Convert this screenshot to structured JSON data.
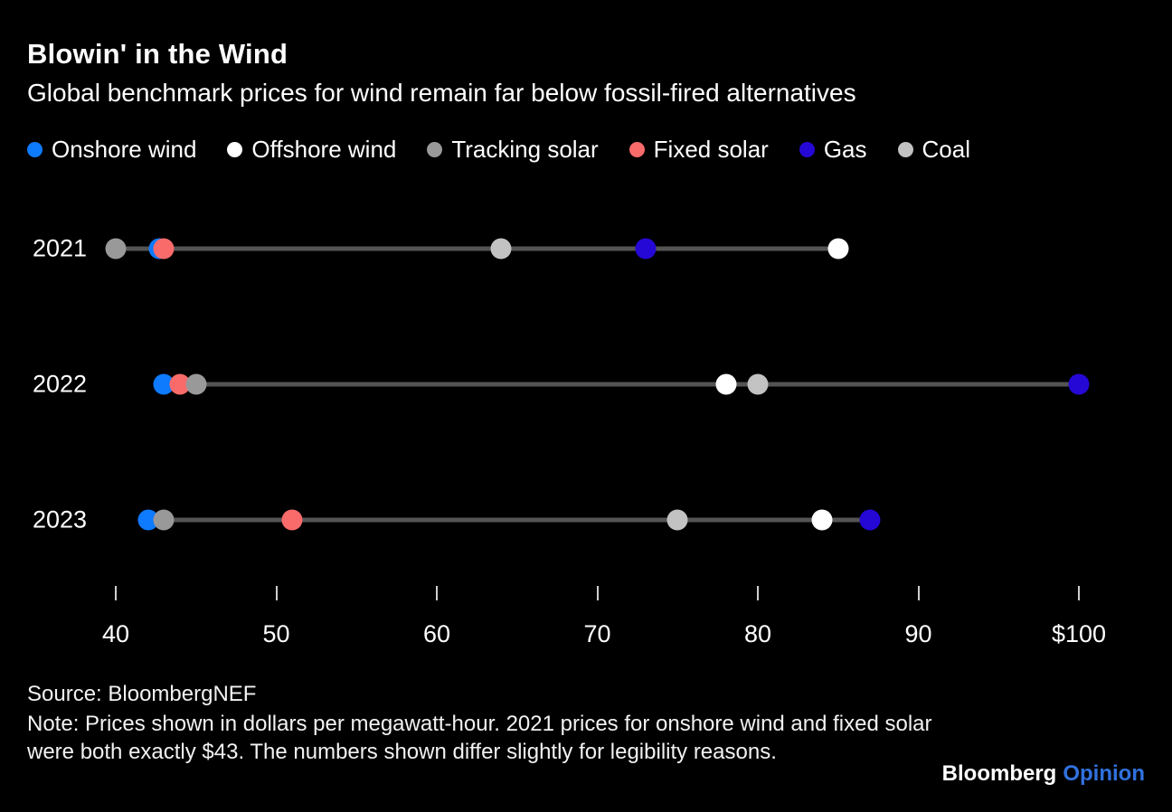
{
  "header": {
    "title": "Blowin' in the Wind",
    "subtitle": "Global benchmark prices for wind remain far below fossil-fired alternatives"
  },
  "chart_data": {
    "type": "scatter",
    "title": "Blowin' in the Wind",
    "subtitle": "Global benchmark prices for wind remain far below fossil-fired alternatives",
    "categories": [
      "2021",
      "2022",
      "2023"
    ],
    "series": [
      {
        "name": "Onshore wind",
        "color": "#0e7afe",
        "values": [
          42.7,
          43,
          42
        ]
      },
      {
        "name": "Offshore wind",
        "color": "#ffffff",
        "values": [
          85,
          78,
          84
        ]
      },
      {
        "name": "Tracking solar",
        "color": "#999999",
        "values": [
          40,
          45,
          43
        ]
      },
      {
        "name": "Fixed solar",
        "color": "#f96b6b",
        "values": [
          43,
          44,
          51
        ]
      },
      {
        "name": "Gas",
        "color": "#2508d6",
        "values": [
          73,
          100,
          87
        ]
      },
      {
        "name": "Coal",
        "color": "#c2c2c2",
        "values": [
          64,
          80,
          75
        ]
      }
    ],
    "xlim": [
      40,
      100
    ],
    "x_ticks": [
      {
        "value": 40,
        "label": "40"
      },
      {
        "value": 50,
        "label": "50"
      },
      {
        "value": 60,
        "label": "60"
      },
      {
        "value": 70,
        "label": "70"
      },
      {
        "value": 80,
        "label": "80"
      },
      {
        "value": 90,
        "label": "90"
      },
      {
        "value": 100,
        "label": "$100"
      }
    ],
    "unit": "dollars per megawatt-hour",
    "legend_position": "top",
    "grid": false
  },
  "footer": {
    "source": "Source: BloombergNEF",
    "note": "Note: Prices shown in dollars per megawatt-hour. 2021 prices for onshore wind and fixed solar were both exactly $43. The numbers shown differ slightly for legibility reasons."
  },
  "branding": {
    "name": "Bloomberg",
    "edition": "Opinion",
    "edition_color": "#3071de"
  }
}
